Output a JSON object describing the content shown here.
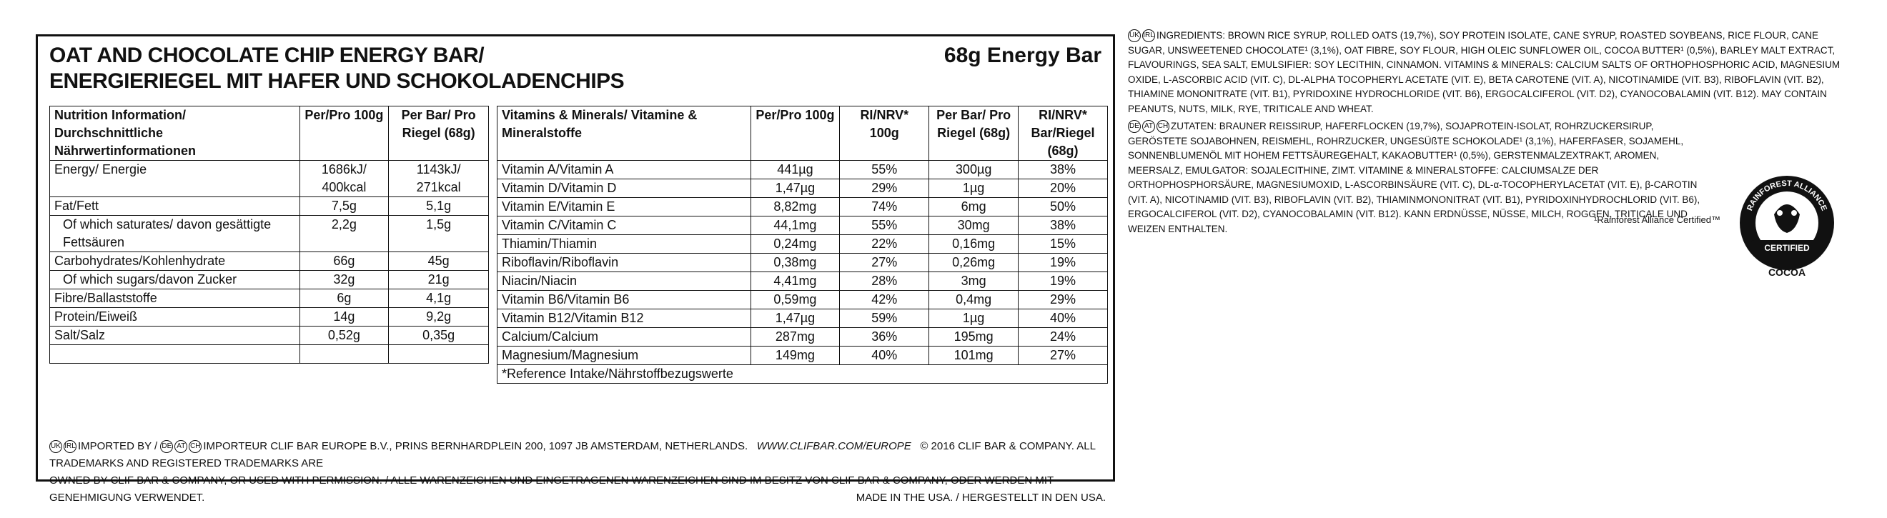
{
  "header": {
    "title_en": "OAT AND CHOCOLATE CHIP ENERGY BAR/",
    "title_de": "ENERGIERIEGEL MIT HAFER UND SCHOKOLADENCHIPS",
    "weight": "68g Energy Bar"
  },
  "nutrition": {
    "headers": [
      "Nutrition Information/ Durchschnittliche Nährwertinformationen",
      "Per/Pro 100g",
      "Per Bar/ Pro Riegel (68g)"
    ],
    "rows": [
      {
        "label": "Energy/ Energie",
        "per100": "1686kJ/ 400kcal",
        "perbar": "1143kJ/ 271kcal"
      },
      {
        "label": "Fat/Fett",
        "per100": "7,5g",
        "perbar": "5,1g"
      },
      {
        "label": "Of which saturates/ davon gesättigte Fettsäuren",
        "per100": "2,2g",
        "perbar": "1,5g"
      },
      {
        "label": "Carbohydrates/Kohlenhydrate",
        "per100": "66g",
        "perbar": "45g"
      },
      {
        "label": "Of which sugars/davon Zucker",
        "per100": "32g",
        "perbar": "21g"
      },
      {
        "label": "Fibre/Ballaststoffe",
        "per100": "6g",
        "perbar": "4,1g"
      },
      {
        "label": "Protein/Eiweiß",
        "per100": "14g",
        "perbar": "9,2g"
      },
      {
        "label": "Salt/Salz",
        "per100": "0,52g",
        "perbar": "0,35g"
      }
    ]
  },
  "vitamins": {
    "headers": [
      "Vitamins & Minerals/ Vitamine & Mineralstoffe",
      "Per/Pro 100g",
      "RI/NRV* 100g",
      "Per Bar/ Pro Riegel (68g)",
      "RI/NRV* Bar/Riegel (68g)"
    ],
    "rows": [
      {
        "label": "Vitamin A/Vitamin A",
        "per100": "441µg",
        "ri100": "55%",
        "perbar": "300µg",
        "ribar": "38%"
      },
      {
        "label": "Vitamin D/Vitamin D",
        "per100": "1,47µg",
        "ri100": "29%",
        "perbar": "1µg",
        "ribar": "20%"
      },
      {
        "label": "Vitamin E/Vitamin E",
        "per100": "8,82mg",
        "ri100": "74%",
        "perbar": "6mg",
        "ribar": "50%"
      },
      {
        "label": "Vitamin C/Vitamin C",
        "per100": "44,1mg",
        "ri100": "55%",
        "perbar": "30mg",
        "ribar": "38%"
      },
      {
        "label": "Thiamin/Thiamin",
        "per100": "0,24mg",
        "ri100": "22%",
        "perbar": "0,16mg",
        "ribar": "15%"
      },
      {
        "label": "Riboflavin/Riboflavin",
        "per100": "0,38mg",
        "ri100": "27%",
        "perbar": "0,26mg",
        "ribar": "19%"
      },
      {
        "label": "Niacin/Niacin",
        "per100": "4,41mg",
        "ri100": "28%",
        "perbar": "3mg",
        "ribar": "19%"
      },
      {
        "label": "Vitamin B6/Vitamin B6",
        "per100": "0,59mg",
        "ri100": "42%",
        "perbar": "0,4mg",
        "ribar": "29%"
      },
      {
        "label": "Vitamin B12/Vitamin B12",
        "per100": "1,47µg",
        "ri100": "59%",
        "perbar": "1µg",
        "ribar": "40%"
      },
      {
        "label": "Calcium/Calcium",
        "per100": "287mg",
        "ri100": "36%",
        "perbar": "195mg",
        "ribar": "24%"
      },
      {
        "label": "Magnesium/Magnesium",
        "per100": "149mg",
        "ri100": "40%",
        "perbar": "101mg",
        "ribar": "27%"
      }
    ],
    "footnote": "*Reference Intake/Nährstoffbezugswerte"
  },
  "footer": {
    "line1_codes_a": [
      "UK",
      "IRL"
    ],
    "line1_a": "IMPORTED BY / ",
    "line1_codes_b": [
      "DE",
      "AT",
      "CH"
    ],
    "line1_b": "IMPORTEUR CLIF BAR EUROPE B.V., PRINS BERNHARDPLEIN 200, 1097 JB AMSTERDAM, NETHERLANDS.",
    "url": "WWW.CLIFBAR.COM/EUROPE",
    "copyright": "© 2016 CLIF BAR & COMPANY. ALL TRADEMARKS AND REGISTERED TRADEMARKS ARE",
    "line2": "OWNED BY CLIF BAR & COMPANY, OR USED WITH PERMISSION. / ALLE WARENZEICHEN UND EINGETRAGENEN WARENZEICHEN SIND IM BESITZ VON CLIF BAR & COMPANY, ODER WERDEN MIT GENEHMIGUNG VERWENDET.",
    "made_in": "MADE IN THE USA. / HERGESTELLT IN DEN USA."
  },
  "ingredients": {
    "en_codes": [
      "UK",
      "IRL"
    ],
    "en": "INGREDIENTS: BROWN RICE SYRUP, ROLLED OATS (19,7%), SOY PROTEIN ISOLATE, CANE SYRUP, ROASTED SOYBEANS, RICE FLOUR, CANE SUGAR, UNSWEETENED CHOCOLATE¹ (3,1%), OAT FIBRE, SOY FLOUR, HIGH OLEIC SUNFLOWER OIL, COCOA BUTTER¹ (0,5%), BARLEY MALT EXTRACT, FLAVOURINGS, SEA SALT, EMULSIFIER: SOY LECITHIN, CINNAMON. VITAMINS & MINERALS: CALCIUM SALTS OF ORTHOPHOSPHORIC ACID, MAGNESIUM OXIDE, L-ASCORBIC ACID (VIT. C), DL-ALPHA TOCOPHERYL ACETATE (VIT. E), BETA CAROTENE (VIT. A), NICOTINAMIDE (VIT. B3), RIBOFLAVIN (VIT. B2), THIAMINE MONONITRATE (VIT. B1), PYRIDOXINE HYDROCHLORIDE (VIT. B6), ERGOCALCIFEROL (VIT. D2), CYANOCOBALAMIN (VIT. B12). MAY CONTAIN PEANUTS, NUTS, MILK, RYE, TRITICALE AND WHEAT.",
    "de_codes": [
      "DE",
      "AT",
      "CH"
    ],
    "de": "ZUTATEN: BRAUNER REISSIRUP, HAFERFLOCKEN (19,7%), SOJAPROTEIN-ISOLAT, ROHRZUCKERSIRUP, GERÖSTETE SOJABOHNEN, REISMEHL, ROHRZUCKER, UNGESÜßTE SCHOKOLADE¹ (3,1%), HAFERFASER, SOJAMEHL, SONNENBLUMENÖL MIT HOHEM FETTSÄUREGEHALT, KAKAOBUTTER¹ (0,5%), GERSTENMALZEXTRAKT, AROMEN, MEERSALZ, EMULGATOR: SOJALECITHINE, ZIMT. VITAMINE & MINERALSTOFFE: CALCIUMSALZE DER ORTHOPHOSPHORSÄURE, MAGNESIUMOXID, L-ASCORBINSÄURE (VIT. C), DL-α-TOCOPHERYLACETAT (VIT. E), β-CAROTIN (VIT. A), NICOTINAMID (VIT. B3), RIBOFLAVIN (VIT. B2), THIAMINMONONITRAT (VIT. B1), PYRIDOXINHYDROCHLORID (VIT. B6), ERGOCALCIFEROL (VIT. D2), CYANOCOBALAMIN (VIT. B12). KANN ERDNÜSSE, NÜSSE, MILCH, ROGGEN, TRITICALE UND WEIZEN ENTHALTEN.",
    "cert_note": "¹Rainforest Alliance Certified™"
  },
  "badge": {
    "top": "RAINFOREST ALLIANCE",
    "mid": "CERTIFIED",
    "bottom": "COCOA"
  }
}
